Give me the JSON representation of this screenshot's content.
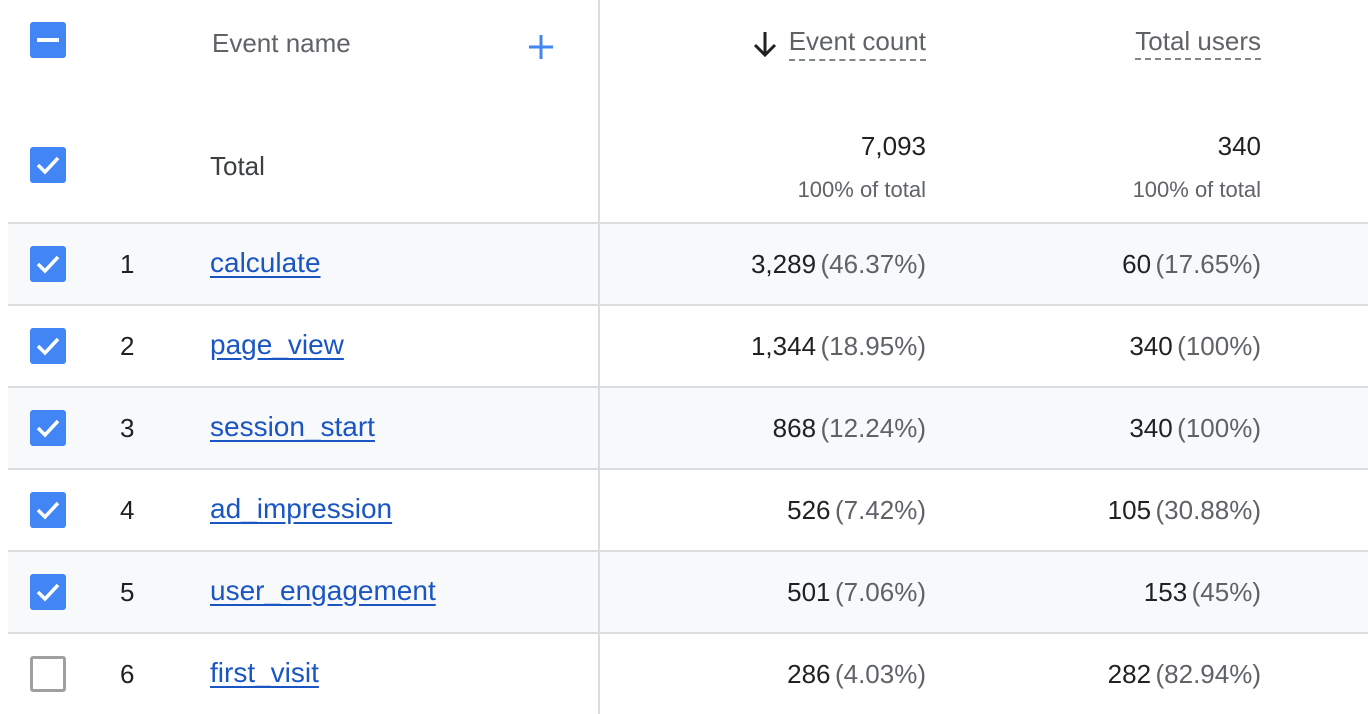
{
  "header": {
    "event_name": "Event name",
    "event_count": "Event count",
    "total_users": "Total users"
  },
  "total": {
    "label": "Total",
    "event_count": "7,093",
    "event_count_sub": "100% of total",
    "total_users": "340",
    "total_users_sub": "100% of total"
  },
  "rows": [
    {
      "rank": "1",
      "name": "calculate",
      "count": "3,289",
      "count_pct": "(46.37%)",
      "users": "60",
      "users_pct": "(17.65%)",
      "checked": true
    },
    {
      "rank": "2",
      "name": "page_view",
      "count": "1,344",
      "count_pct": "(18.95%)",
      "users": "340",
      "users_pct": "(100%)",
      "checked": true
    },
    {
      "rank": "3",
      "name": "session_start",
      "count": "868",
      "count_pct": "(12.24%)",
      "users": "340",
      "users_pct": "(100%)",
      "checked": true
    },
    {
      "rank": "4",
      "name": "ad_impression",
      "count": "526",
      "count_pct": "(7.42%)",
      "users": "105",
      "users_pct": "(30.88%)",
      "checked": true
    },
    {
      "rank": "5",
      "name": "user_engagement",
      "count": "501",
      "count_pct": "(7.06%)",
      "users": "153",
      "users_pct": "(45%)",
      "checked": true
    },
    {
      "rank": "6",
      "name": "first_visit",
      "count": "286",
      "count_pct": "(4.03%)",
      "users": "282",
      "users_pct": "(82.94%)",
      "checked": false
    }
  ],
  "colors": {
    "accent": "#4285f4",
    "link": "#1a55c4",
    "row_alt": "#f8f9fa",
    "divider": "#dadce0"
  },
  "icons": {
    "header_checkbox": "minus-checkbox-icon",
    "add_dimension": "plus-icon",
    "sort": "arrow-down-icon",
    "row_checkbox": "checkmark-icon"
  }
}
